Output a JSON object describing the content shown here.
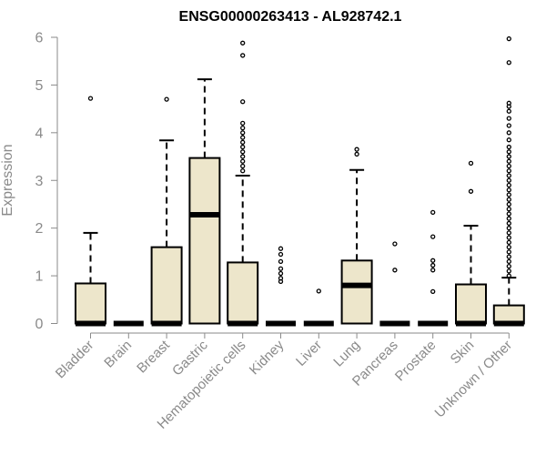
{
  "chart_data": {
    "type": "box",
    "title": "ENSG00000263413 - AL928742.1",
    "ylabel": "Expression",
    "xlabel": "",
    "ylim": [
      0,
      6
    ],
    "yticks": [
      0,
      1,
      2,
      3,
      4,
      5,
      6
    ],
    "grid": false,
    "categories": [
      "Bladder",
      "Brain",
      "Breast",
      "Gastric",
      "Hematopoietic cells",
      "Kidney",
      "Liver",
      "Lung",
      "Pancreas",
      "Prostate",
      "Skin",
      "Unknown / Other"
    ],
    "boxes": [
      {
        "q1": 0,
        "median": 0,
        "q3": 0.84,
        "whisker_low": 0,
        "whisker_high": 1.9,
        "outliers": [
          4.72
        ]
      },
      {
        "q1": 0,
        "median": 0,
        "q3": 0,
        "whisker_low": 0,
        "whisker_high": 0,
        "outliers": []
      },
      {
        "q1": 0,
        "median": 0,
        "q3": 1.6,
        "whisker_low": 0,
        "whisker_high": 3.84,
        "outliers": [
          4.7
        ]
      },
      {
        "q1": 0,
        "median": 2.28,
        "q3": 3.47,
        "whisker_low": 0,
        "whisker_high": 5.12,
        "outliers": []
      },
      {
        "q1": 0,
        "median": 0,
        "q3": 1.28,
        "whisker_low": 0,
        "whisker_high": 3.1,
        "outliers": [
          3.2,
          3.3,
          3.4,
          3.5,
          3.6,
          3.7,
          3.8,
          3.9,
          4.0,
          4.1,
          4.2,
          4.65,
          5.62,
          5.88
        ]
      },
      {
        "q1": 0,
        "median": 0,
        "q3": 0,
        "whisker_low": 0,
        "whisker_high": 0,
        "outliers": [
          0.88,
          0.95,
          1.05,
          1.15,
          1.3,
          1.45,
          1.57
        ]
      },
      {
        "q1": 0,
        "median": 0,
        "q3": 0,
        "whisker_low": 0,
        "whisker_high": 0,
        "outliers": [
          0.68
        ]
      },
      {
        "q1": 0,
        "median": 0.8,
        "q3": 1.32,
        "whisker_low": 0,
        "whisker_high": 3.22,
        "outliers": [
          3.55,
          3.65
        ]
      },
      {
        "q1": 0,
        "median": 0,
        "q3": 0,
        "whisker_low": 0,
        "whisker_high": 0,
        "outliers": [
          1.12,
          1.67
        ]
      },
      {
        "q1": 0,
        "median": 0,
        "q3": 0,
        "whisker_low": 0,
        "whisker_high": 0,
        "outliers": [
          0.67,
          1.12,
          1.22,
          1.32,
          1.82,
          2.33
        ]
      },
      {
        "q1": 0,
        "median": 0,
        "q3": 0.82,
        "whisker_low": 0,
        "whisker_high": 2.05,
        "outliers": [
          2.77,
          3.36
        ]
      },
      {
        "q1": 0,
        "median": 0,
        "q3": 0.38,
        "whisker_low": 0,
        "whisker_high": 0.96,
        "outliers": [
          1.0,
          1.1,
          1.2,
          1.3,
          1.4,
          1.5,
          1.6,
          1.7,
          1.8,
          1.9,
          2.0,
          2.1,
          2.2,
          2.3,
          2.4,
          2.5,
          2.6,
          2.7,
          2.8,
          2.9,
          3.0,
          3.1,
          3.2,
          3.3,
          3.4,
          3.5,
          3.6,
          3.7,
          3.85,
          4.0,
          4.15,
          4.3,
          4.45,
          4.55,
          4.62,
          5.47,
          5.97
        ]
      }
    ],
    "colors": {
      "box_fill": "#ede6cb",
      "box_stroke": "#000000",
      "axis": "#8a8a8a",
      "label_text": "#8a8a8a"
    }
  }
}
